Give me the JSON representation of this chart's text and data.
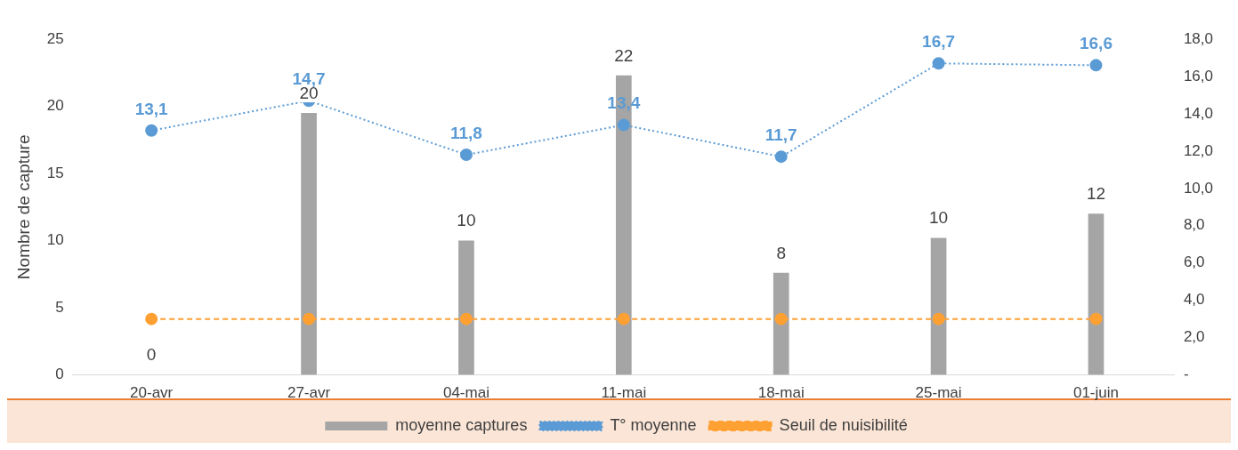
{
  "chart_data": {
    "type": "bar",
    "ylabel": "Nombre de capture",
    "categories": [
      "20-avr",
      "27-avr",
      "04-mai",
      "11-mai",
      "18-mai",
      "25-mai",
      "01-juin"
    ],
    "series": [
      {
        "name": "moyenne captures",
        "color": "#a5a5a5",
        "values": [
          0,
          19.5,
          10,
          22.3,
          7.6,
          10.2,
          12
        ],
        "value_labels": [
          "0",
          "20",
          "10",
          "22",
          "8",
          "10",
          "12"
        ]
      },
      {
        "name": "T° moyenne",
        "type": "line",
        "axis": "y2",
        "color": "#5b9bd5",
        "marker": "circle",
        "line_style": "dotted",
        "values": [
          13.1,
          14.7,
          11.8,
          13.4,
          11.7,
          16.7,
          16.6
        ],
        "value_labels": [
          "13,1",
          "14,7",
          "11,8",
          "13,4",
          "11,7",
          "16,7",
          "16,6"
        ]
      },
      {
        "name": "Seuil de nuisibilité",
        "type": "line",
        "axis": "y2",
        "color": "#ffa033",
        "marker": "circle",
        "line_style": "dashed",
        "values": [
          3,
          3,
          3,
          3,
          3,
          3,
          3
        ]
      }
    ],
    "ylim": [
      0,
      25
    ],
    "yticks": [
      0,
      5,
      10,
      15,
      20,
      25
    ],
    "y2lim": [
      0,
      18
    ],
    "y2ticks": [
      {
        "value": 0,
        "label": "-"
      },
      {
        "value": 2,
        "label": "2,0"
      },
      {
        "value": 4,
        "label": "4,0"
      },
      {
        "value": 6,
        "label": "6,0"
      },
      {
        "value": 8,
        "label": "8,0"
      },
      {
        "value": 10,
        "label": "10,0"
      },
      {
        "value": 12,
        "label": "12,0"
      },
      {
        "value": 14,
        "label": "14,0"
      },
      {
        "value": 16,
        "label": "16,0"
      },
      {
        "value": 18,
        "label": "18,0"
      }
    ],
    "grid": false,
    "legend": "bottom"
  }
}
